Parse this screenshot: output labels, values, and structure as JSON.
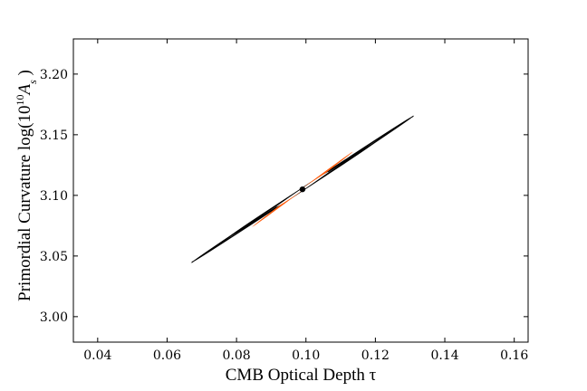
{
  "chart_data": {
    "type": "contour",
    "title": "",
    "xlabel": "CMB Optical Depth τ",
    "ylabel_prefix": "Primordial Curvature log(10",
    "ylabel_exp": "10",
    "ylabel_var": "A",
    "ylabel_sub": "s",
    "ylabel_suffix": " )",
    "xlim": [
      0.033,
      0.164
    ],
    "ylim": [
      2.979,
      3.229
    ],
    "xticks": [
      0.04,
      0.06,
      0.08,
      0.1,
      0.12,
      0.14,
      0.16
    ],
    "xtick_labels": [
      "0.04",
      "0.06",
      "0.08",
      "0.10",
      "0.12",
      "0.14",
      "0.16"
    ],
    "yticks": [
      3.0,
      3.05,
      3.1,
      3.15,
      3.2
    ],
    "ytick_labels": [
      "3.00",
      "3.05",
      "3.10",
      "3.15",
      "3.20"
    ],
    "grid": false,
    "colors": {
      "filled_region": "#ff5a0a",
      "line": "#000000",
      "inner_fill": "#ffffff"
    },
    "center": {
      "x": 0.099,
      "y": 3.105
    },
    "outer_contours": [
      {
        "x_extent": [
          0.067,
          0.131
        ],
        "y_extent": [
          3.046,
          3.167
        ]
      },
      {
        "x_extent": [
          0.078,
          0.119
        ],
        "y_extent": [
          3.068,
          3.144
        ]
      }
    ],
    "filled_band": {
      "x_extent": [
        0.084,
        0.113
      ],
      "y_extent": [
        3.075,
        3.137
      ]
    },
    "inner_white": {
      "x_extent": [
        0.091,
        0.106
      ],
      "y_extent": [
        3.09,
        3.119
      ]
    }
  }
}
